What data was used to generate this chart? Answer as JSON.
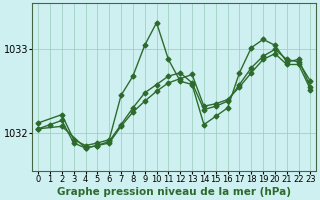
{
  "xlabel": "Graphe pression niveau de la mer (hPa)",
  "background_color": "#cff0f0",
  "grid_color": "#99ccbb",
  "line_color": "#2d6b2d",
  "xlim": [
    -0.5,
    23.5
  ],
  "ylim": [
    1031.55,
    1033.55
  ],
  "yticks": [
    1032,
    1033
  ],
  "xticks": [
    0,
    1,
    2,
    3,
    4,
    5,
    6,
    7,
    8,
    9,
    10,
    11,
    12,
    13,
    14,
    15,
    16,
    17,
    18,
    19,
    20,
    21,
    22,
    23
  ],
  "line1_x": [
    0,
    1,
    2,
    3,
    4,
    5,
    6,
    7,
    8,
    9,
    10,
    11,
    12,
    13,
    14,
    15,
    16,
    17,
    18,
    19,
    20,
    21,
    22,
    23
  ],
  "line1_y": [
    1032.05,
    1032.1,
    1032.15,
    1031.88,
    1031.82,
    1031.85,
    1031.9,
    1032.1,
    1032.3,
    1032.48,
    1032.58,
    1032.68,
    1032.72,
    1032.6,
    1032.28,
    1032.32,
    1032.38,
    1032.58,
    1032.78,
    1032.92,
    1033.0,
    1032.88,
    1032.85,
    1032.62
  ],
  "line2_x": [
    0,
    2,
    3,
    4,
    5,
    6,
    7,
    8,
    9,
    10,
    11,
    12,
    13,
    14,
    15,
    16,
    17,
    18,
    19,
    20,
    21,
    22,
    23
  ],
  "line2_y": [
    1032.12,
    1032.22,
    1031.92,
    1031.85,
    1031.88,
    1031.92,
    1032.45,
    1032.68,
    1033.05,
    1033.32,
    1032.88,
    1032.62,
    1032.58,
    1032.1,
    1032.2,
    1032.3,
    1032.72,
    1033.02,
    1033.12,
    1033.05,
    1032.85,
    1032.88,
    1032.55
  ],
  "line3_x": [
    0,
    2,
    4,
    5,
    6,
    7,
    8,
    9,
    10,
    11,
    12,
    13,
    14,
    15,
    16,
    17,
    18,
    19,
    20,
    21,
    22,
    23
  ],
  "line3_y": [
    1032.05,
    1032.08,
    1031.82,
    1031.85,
    1031.88,
    1032.08,
    1032.25,
    1032.38,
    1032.5,
    1032.6,
    1032.65,
    1032.7,
    1032.32,
    1032.35,
    1032.4,
    1032.55,
    1032.72,
    1032.88,
    1032.95,
    1032.82,
    1032.82,
    1032.52
  ],
  "marker": "D",
  "marker_size": 2.5,
  "line_width": 1.0,
  "xlabel_fontsize": 7.5,
  "tick_fontsize": 6.0,
  "ytick_fontsize": 7.0
}
